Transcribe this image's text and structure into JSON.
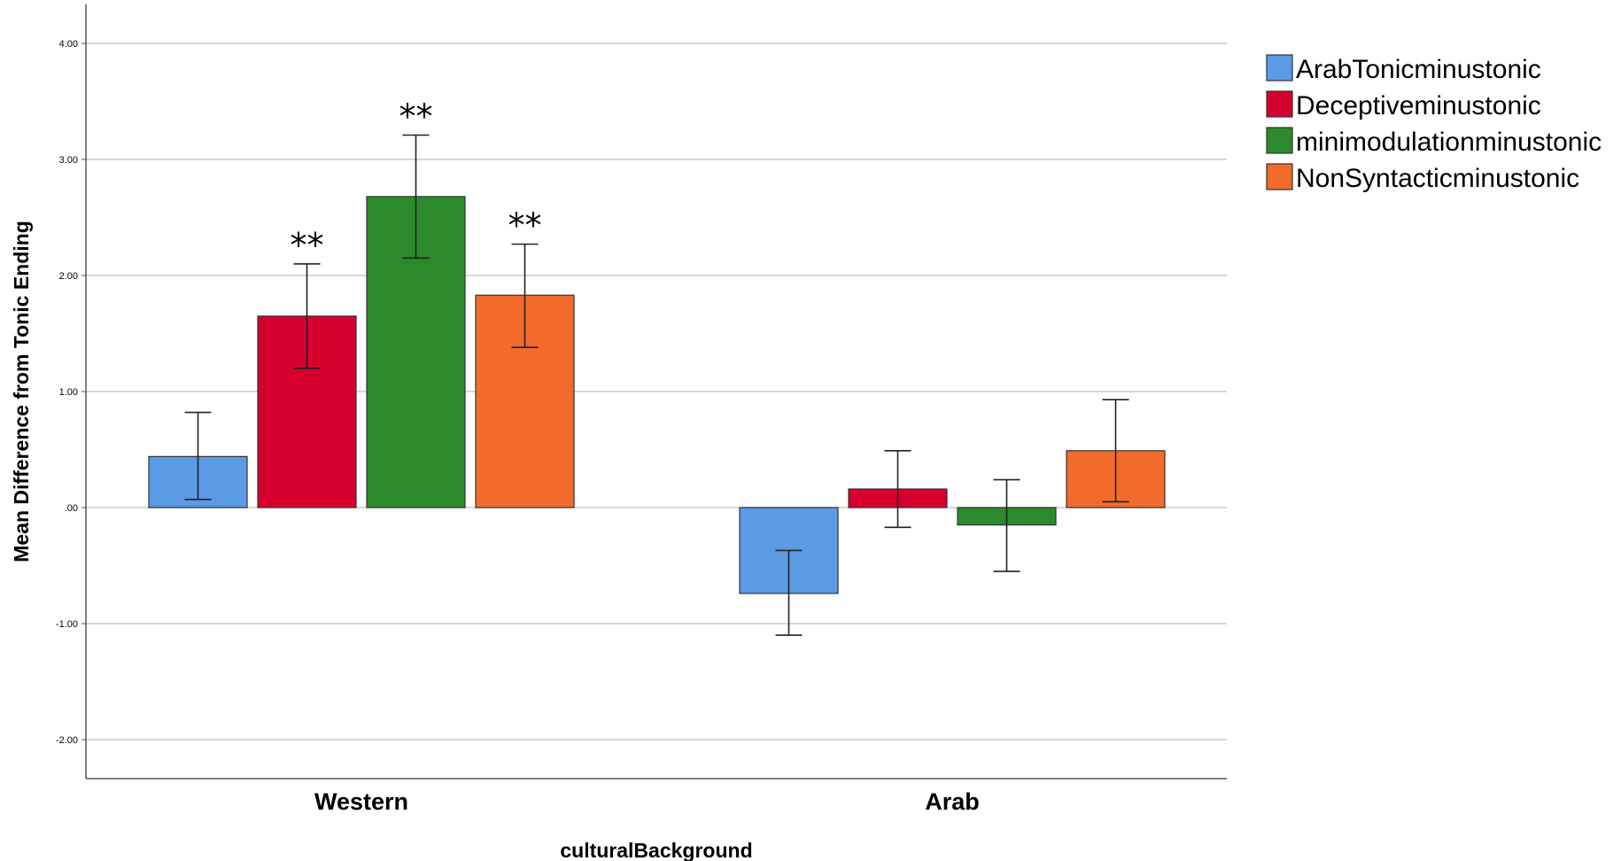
{
  "chart_data": {
    "type": "bar",
    "xlabel": "culturalBackground",
    "ylabel": "Mean Difference from Tonic Ending",
    "categories": [
      "Western",
      "Arab"
    ],
    "ylim": [
      -2.35,
      4.35
    ],
    "yticks": [
      -2,
      -1,
      0,
      1,
      2,
      3,
      4
    ],
    "ytick_labels": [
      "-2.00",
      "-1.00",
      ".00",
      "1.00",
      "2.00",
      "3.00",
      "4.00"
    ],
    "grid": true,
    "legend": "right",
    "series": [
      {
        "name": "ArabTonicminustonic",
        "color": "#5b9be6",
        "values": [
          0.44,
          -0.74
        ],
        "error_low": [
          0.07,
          -1.1
        ],
        "error_high": [
          0.82,
          -0.37
        ],
        "significance": [
          "",
          ""
        ]
      },
      {
        "name": "Deceptiveminustonic",
        "color": "#d6002f",
        "values": [
          1.65,
          0.16
        ],
        "error_low": [
          1.2,
          -0.17
        ],
        "error_high": [
          2.1,
          0.49
        ],
        "significance": [
          "**",
          ""
        ]
      },
      {
        "name": "minimodulationminustonic",
        "color": "#2b8a2b",
        "values": [
          2.68,
          -0.15
        ],
        "error_low": [
          2.15,
          -0.55
        ],
        "error_high": [
          3.21,
          0.24
        ],
        "significance": [
          "**",
          ""
        ]
      },
      {
        "name": "NonSyntacticminustonic",
        "color": "#f26b2a",
        "values": [
          1.83,
          0.49
        ],
        "error_low": [
          1.38,
          0.05
        ],
        "error_high": [
          2.27,
          0.93
        ],
        "significance": [
          "**",
          ""
        ]
      }
    ]
  }
}
